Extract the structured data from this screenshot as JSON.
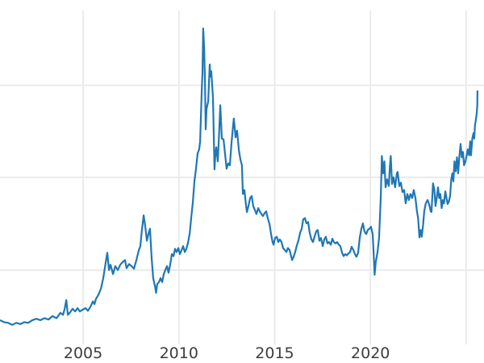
{
  "chart_data": {
    "type": "line",
    "title": "",
    "xlabel": "",
    "ylabel": "",
    "legend_position": "none",
    "grid": true,
    "xlim": [
      2000.66,
      2025.93
    ],
    "ylim": [
      1.26,
      51.3
    ],
    "x_ticks": [
      {
        "year": 2005,
        "label": "2005"
      },
      {
        "year": 2010,
        "label": "2010"
      },
      {
        "year": 2015,
        "label": "2015"
      },
      {
        "year": 2020,
        "label": "2020"
      },
      {
        "year": 2025,
        "label": ""
      }
    ],
    "y_gridlines": [
      12.4,
      26.3,
      40.1
    ],
    "series": [
      {
        "name": "price",
        "color": "#1f77b4",
        "points": [
          [
            2000.66,
            4.9
          ],
          [
            2000.87,
            4.6
          ],
          [
            2001.08,
            4.5
          ],
          [
            2001.3,
            4.2
          ],
          [
            2001.51,
            4.5
          ],
          [
            2001.72,
            4.3
          ],
          [
            2001.93,
            4.6
          ],
          [
            2002.14,
            4.5
          ],
          [
            2002.35,
            4.9
          ],
          [
            2002.56,
            5.1
          ],
          [
            2002.77,
            4.9
          ],
          [
            2002.98,
            5.2
          ],
          [
            2003.19,
            5.0
          ],
          [
            2003.4,
            5.5
          ],
          [
            2003.61,
            5.2
          ],
          [
            2003.82,
            6.0
          ],
          [
            2003.95,
            5.7
          ],
          [
            2004.03,
            6.5
          ],
          [
            2004.12,
            7.9
          ],
          [
            2004.2,
            5.7
          ],
          [
            2004.33,
            6.1
          ],
          [
            2004.45,
            6.6
          ],
          [
            2004.58,
            6.2
          ],
          [
            2004.71,
            6.7
          ],
          [
            2004.83,
            6.2
          ],
          [
            2005.0,
            6.5
          ],
          [
            2005.13,
            6.7
          ],
          [
            2005.25,
            6.3
          ],
          [
            2005.38,
            6.9
          ],
          [
            2005.51,
            7.7
          ],
          [
            2005.59,
            7.3
          ],
          [
            2005.67,
            8.1
          ],
          [
            2005.8,
            8.7
          ],
          [
            2005.93,
            9.6
          ],
          [
            2006.05,
            11.2
          ],
          [
            2006.18,
            13.6
          ],
          [
            2006.26,
            15.0
          ],
          [
            2006.35,
            12.4
          ],
          [
            2006.43,
            13.2
          ],
          [
            2006.56,
            11.8
          ],
          [
            2006.68,
            13.0
          ],
          [
            2006.81,
            12.4
          ],
          [
            2006.94,
            13.2
          ],
          [
            2007.06,
            13.6
          ],
          [
            2007.19,
            13.9
          ],
          [
            2007.27,
            12.7
          ],
          [
            2007.4,
            13.3
          ],
          [
            2007.53,
            13.0
          ],
          [
            2007.65,
            12.6
          ],
          [
            2007.78,
            13.9
          ],
          [
            2007.91,
            15.4
          ],
          [
            2007.99,
            16.0
          ],
          [
            2008.07,
            18.4
          ],
          [
            2008.16,
            20.6
          ],
          [
            2008.24,
            19.0
          ],
          [
            2008.33,
            16.8
          ],
          [
            2008.41,
            17.8
          ],
          [
            2008.49,
            18.6
          ],
          [
            2008.58,
            14.2
          ],
          [
            2008.66,
            11.2
          ],
          [
            2008.75,
            10.0
          ],
          [
            2008.81,
            9.0
          ],
          [
            2008.87,
            10.3
          ],
          [
            2008.96,
            10.6
          ],
          [
            2009.04,
            11.2
          ],
          [
            2009.13,
            10.6
          ],
          [
            2009.21,
            11.8
          ],
          [
            2009.29,
            12.4
          ],
          [
            2009.38,
            13.0
          ],
          [
            2009.46,
            12.0
          ],
          [
            2009.55,
            13.3
          ],
          [
            2009.63,
            14.8
          ],
          [
            2009.72,
            14.5
          ],
          [
            2009.8,
            15.6
          ],
          [
            2009.88,
            15.1
          ],
          [
            2009.97,
            15.7
          ],
          [
            2010.05,
            14.8
          ],
          [
            2010.14,
            15.4
          ],
          [
            2010.22,
            16.0
          ],
          [
            2010.31,
            15.1
          ],
          [
            2010.39,
            15.6
          ],
          [
            2010.47,
            16.4
          ],
          [
            2010.56,
            17.8
          ],
          [
            2010.64,
            20.2
          ],
          [
            2010.73,
            22.6
          ],
          [
            2010.81,
            25.7
          ],
          [
            2010.89,
            27.5
          ],
          [
            2010.98,
            29.9
          ],
          [
            2011.06,
            30.5
          ],
          [
            2011.11,
            31.7
          ],
          [
            2011.19,
            38.9
          ],
          [
            2011.23,
            42.0
          ],
          [
            2011.27,
            48.6
          ],
          [
            2011.32,
            45.6
          ],
          [
            2011.36,
            40.7
          ],
          [
            2011.4,
            33.5
          ],
          [
            2011.44,
            36.5
          ],
          [
            2011.53,
            37.7
          ],
          [
            2011.61,
            43.2
          ],
          [
            2011.65,
            41.4
          ],
          [
            2011.69,
            42.2
          ],
          [
            2011.78,
            38.3
          ],
          [
            2011.86,
            27.5
          ],
          [
            2011.91,
            29.9
          ],
          [
            2011.95,
            30.8
          ],
          [
            2012.03,
            28.7
          ],
          [
            2012.1,
            32.9
          ],
          [
            2012.16,
            37.1
          ],
          [
            2012.24,
            32.1
          ],
          [
            2012.33,
            32.0
          ],
          [
            2012.41,
            29.8
          ],
          [
            2012.49,
            27.6
          ],
          [
            2012.58,
            28.4
          ],
          [
            2012.66,
            28.1
          ],
          [
            2012.75,
            31.6
          ],
          [
            2012.83,
            34.1
          ],
          [
            2012.87,
            35.1
          ],
          [
            2012.96,
            32.3
          ],
          [
            2013.04,
            33.3
          ],
          [
            2013.13,
            30.4
          ],
          [
            2013.21,
            29.0
          ],
          [
            2013.29,
            28.1
          ],
          [
            2013.34,
            23.8
          ],
          [
            2013.42,
            24.4
          ],
          [
            2013.51,
            22.0
          ],
          [
            2013.55,
            21.1
          ],
          [
            2013.63,
            22.0
          ],
          [
            2013.72,
            23.2
          ],
          [
            2013.8,
            23.5
          ],
          [
            2013.88,
            22.0
          ],
          [
            2013.97,
            21.4
          ],
          [
            2014.05,
            20.8
          ],
          [
            2014.14,
            21.7
          ],
          [
            2014.22,
            21.2
          ],
          [
            2014.31,
            20.8
          ],
          [
            2014.39,
            20.5
          ],
          [
            2014.47,
            20.9
          ],
          [
            2014.56,
            21.2
          ],
          [
            2014.64,
            20.2
          ],
          [
            2014.73,
            19.3
          ],
          [
            2014.81,
            17.8
          ],
          [
            2014.89,
            16.6
          ],
          [
            2014.94,
            16.2
          ],
          [
            2015.02,
            17.2
          ],
          [
            2015.11,
            17.4
          ],
          [
            2015.19,
            16.6
          ],
          [
            2015.27,
            17.0
          ],
          [
            2015.36,
            16.6
          ],
          [
            2015.44,
            15.7
          ],
          [
            2015.53,
            15.4
          ],
          [
            2015.61,
            15.1
          ],
          [
            2015.69,
            15.7
          ],
          [
            2015.78,
            15.4
          ],
          [
            2015.86,
            14.5
          ],
          [
            2015.91,
            13.9
          ],
          [
            2015.99,
            14.4
          ],
          [
            2016.07,
            15.1
          ],
          [
            2016.16,
            16.1
          ],
          [
            2016.24,
            16.8
          ],
          [
            2016.33,
            18.0
          ],
          [
            2016.41,
            18.6
          ],
          [
            2016.49,
            20.0
          ],
          [
            2016.58,
            20.2
          ],
          [
            2016.66,
            19.4
          ],
          [
            2016.75,
            19.6
          ],
          [
            2016.83,
            18.0
          ],
          [
            2016.92,
            17.0
          ],
          [
            2017.0,
            16.6
          ],
          [
            2017.08,
            17.4
          ],
          [
            2017.17,
            18.2
          ],
          [
            2017.25,
            18.4
          ],
          [
            2017.34,
            16.8
          ],
          [
            2017.42,
            17.2
          ],
          [
            2017.51,
            16.0
          ],
          [
            2017.59,
            17.0
          ],
          [
            2017.67,
            17.4
          ],
          [
            2017.76,
            16.4
          ],
          [
            2017.84,
            16.6
          ],
          [
            2017.93,
            16.2
          ],
          [
            2018.01,
            17.1
          ],
          [
            2018.09,
            16.6
          ],
          [
            2018.18,
            16.4
          ],
          [
            2018.26,
            16.6
          ],
          [
            2018.35,
            16.2
          ],
          [
            2018.43,
            16.0
          ],
          [
            2018.52,
            15.0
          ],
          [
            2018.6,
            14.5
          ],
          [
            2018.68,
            14.8
          ],
          [
            2018.77,
            14.6
          ],
          [
            2018.85,
            14.9
          ],
          [
            2018.94,
            15.1
          ],
          [
            2019.02,
            15.9
          ],
          [
            2019.11,
            15.4
          ],
          [
            2019.19,
            14.8
          ],
          [
            2019.27,
            14.4
          ],
          [
            2019.36,
            15.0
          ],
          [
            2019.44,
            17.2
          ],
          [
            2019.53,
            18.6
          ],
          [
            2019.61,
            19.4
          ],
          [
            2019.69,
            18.2
          ],
          [
            2019.78,
            17.8
          ],
          [
            2019.86,
            18.4
          ],
          [
            2019.95,
            18.6
          ],
          [
            2020.03,
            18.9
          ],
          [
            2020.12,
            17.8
          ],
          [
            2020.16,
            15.4
          ],
          [
            2020.22,
            11.7
          ],
          [
            2020.28,
            13.6
          ],
          [
            2020.37,
            15.1
          ],
          [
            2020.45,
            17.2
          ],
          [
            2020.54,
            23.2
          ],
          [
            2020.6,
            29.5
          ],
          [
            2020.66,
            26.9
          ],
          [
            2020.73,
            28.7
          ],
          [
            2020.79,
            24.8
          ],
          [
            2020.87,
            26.0
          ],
          [
            2020.96,
            25.0
          ],
          [
            2021.02,
            28.1
          ],
          [
            2021.06,
            29.5
          ],
          [
            2021.13,
            25.3
          ],
          [
            2021.21,
            26.3
          ],
          [
            2021.29,
            24.8
          ],
          [
            2021.38,
            26.9
          ],
          [
            2021.42,
            27.1
          ],
          [
            2021.51,
            25.0
          ],
          [
            2021.59,
            25.5
          ],
          [
            2021.67,
            24.1
          ],
          [
            2021.76,
            24.4
          ],
          [
            2021.84,
            22.4
          ],
          [
            2021.93,
            23.8
          ],
          [
            2022.01,
            22.9
          ],
          [
            2022.09,
            23.8
          ],
          [
            2022.18,
            23.2
          ],
          [
            2022.26,
            24.4
          ],
          [
            2022.35,
            23.2
          ],
          [
            2022.43,
            21.2
          ],
          [
            2022.49,
            20.2
          ],
          [
            2022.56,
            17.3
          ],
          [
            2022.62,
            18.4
          ],
          [
            2022.68,
            17.4
          ],
          [
            2022.75,
            19.2
          ],
          [
            2022.81,
            21.2
          ],
          [
            2022.89,
            22.4
          ],
          [
            2022.98,
            22.9
          ],
          [
            2023.06,
            22.3
          ],
          [
            2023.15,
            21.2
          ],
          [
            2023.19,
            21.1
          ],
          [
            2023.27,
            25.4
          ],
          [
            2023.34,
            24.4
          ],
          [
            2023.4,
            22.0
          ],
          [
            2023.46,
            23.2
          ],
          [
            2023.53,
            24.8
          ],
          [
            2023.59,
            23.2
          ],
          [
            2023.65,
            23.8
          ],
          [
            2023.72,
            21.7
          ],
          [
            2023.78,
            22.9
          ],
          [
            2023.84,
            22.4
          ],
          [
            2023.91,
            24.2
          ],
          [
            2023.97,
            23.2
          ],
          [
            2024.03,
            22.3
          ],
          [
            2024.09,
            22.6
          ],
          [
            2024.16,
            23.5
          ],
          [
            2024.22,
            26.0
          ],
          [
            2024.28,
            26.9
          ],
          [
            2024.33,
            25.7
          ],
          [
            2024.39,
            28.7
          ],
          [
            2024.45,
            27.2
          ],
          [
            2024.52,
            29.3
          ],
          [
            2024.58,
            26.9
          ],
          [
            2024.64,
            29.3
          ],
          [
            2024.71,
            31.3
          ],
          [
            2024.77,
            29.3
          ],
          [
            2024.83,
            30.1
          ],
          [
            2024.89,
            28.1
          ],
          [
            2024.96,
            28.7
          ],
          [
            2025.02,
            29.5
          ],
          [
            2025.08,
            30.5
          ],
          [
            2025.15,
            29.6
          ],
          [
            2025.21,
            31.7
          ],
          [
            2025.25,
            29.6
          ],
          [
            2025.32,
            32.1
          ],
          [
            2025.38,
            32.9
          ],
          [
            2025.42,
            32.1
          ],
          [
            2025.46,
            34.1
          ],
          [
            2025.51,
            35.0
          ],
          [
            2025.55,
            35.9
          ],
          [
            2025.58,
            37.1
          ],
          [
            2025.59,
            39.3
          ]
        ]
      }
    ]
  },
  "style": {
    "background": "#ffffff",
    "gridline_color": "#e9e9e9",
    "tick_label_color": "#3d3d3d",
    "line_color": "#1f77b4"
  }
}
